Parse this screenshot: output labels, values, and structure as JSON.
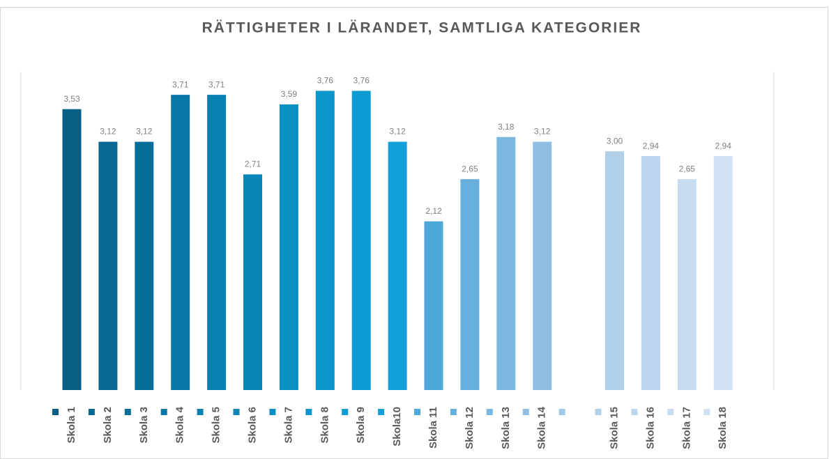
{
  "chart_data": {
    "type": "bar",
    "title": "RÄTTIGHETER I LÄRANDET, SAMTLIGA KATEGORIER",
    "categories": [
      "Skola 1",
      "Skola 2",
      "Skola 3",
      "Skola 4",
      "Skola 5",
      "Skola 6",
      "Skola 7",
      "Skola 8",
      "Skola 9",
      "Skola10",
      "Skola 11",
      "Skola 12",
      "Skola 13",
      "Skola 14",
      null,
      "Skola 15",
      "Skola 16",
      "Skola 17",
      "Skola 18"
    ],
    "values": [
      3.53,
      3.12,
      3.12,
      3.71,
      3.71,
      2.71,
      3.59,
      3.76,
      3.76,
      3.12,
      2.12,
      2.65,
      3.18,
      3.12,
      null,
      3.0,
      2.94,
      2.65,
      2.94
    ],
    "value_labels": [
      "3,53",
      "3,12",
      "3,12",
      "3,71",
      "3,71",
      "2,71",
      "3,59",
      "3,76",
      "3,76",
      "3,12",
      "2,12",
      "2,65",
      "3,18",
      "3,12",
      null,
      "3,00",
      "2,94",
      "2,65",
      "2,94"
    ],
    "colors": [
      "#065f85",
      "#066a94",
      "#076e9a",
      "#0778a8",
      "#0880b2",
      "#0985b8",
      "#0a8fc2",
      "#0b95cb",
      "#0d9bd3",
      "#139fd8",
      "#4ea8d9",
      "#67afdc",
      "#7bb8e0",
      "#8ebfe3",
      "#a2c8e7",
      "#b0d0ea",
      "#bcd6ee",
      "#c7dcf0",
      "#d1e2f3"
    ],
    "ylim": [
      0,
      4
    ]
  }
}
